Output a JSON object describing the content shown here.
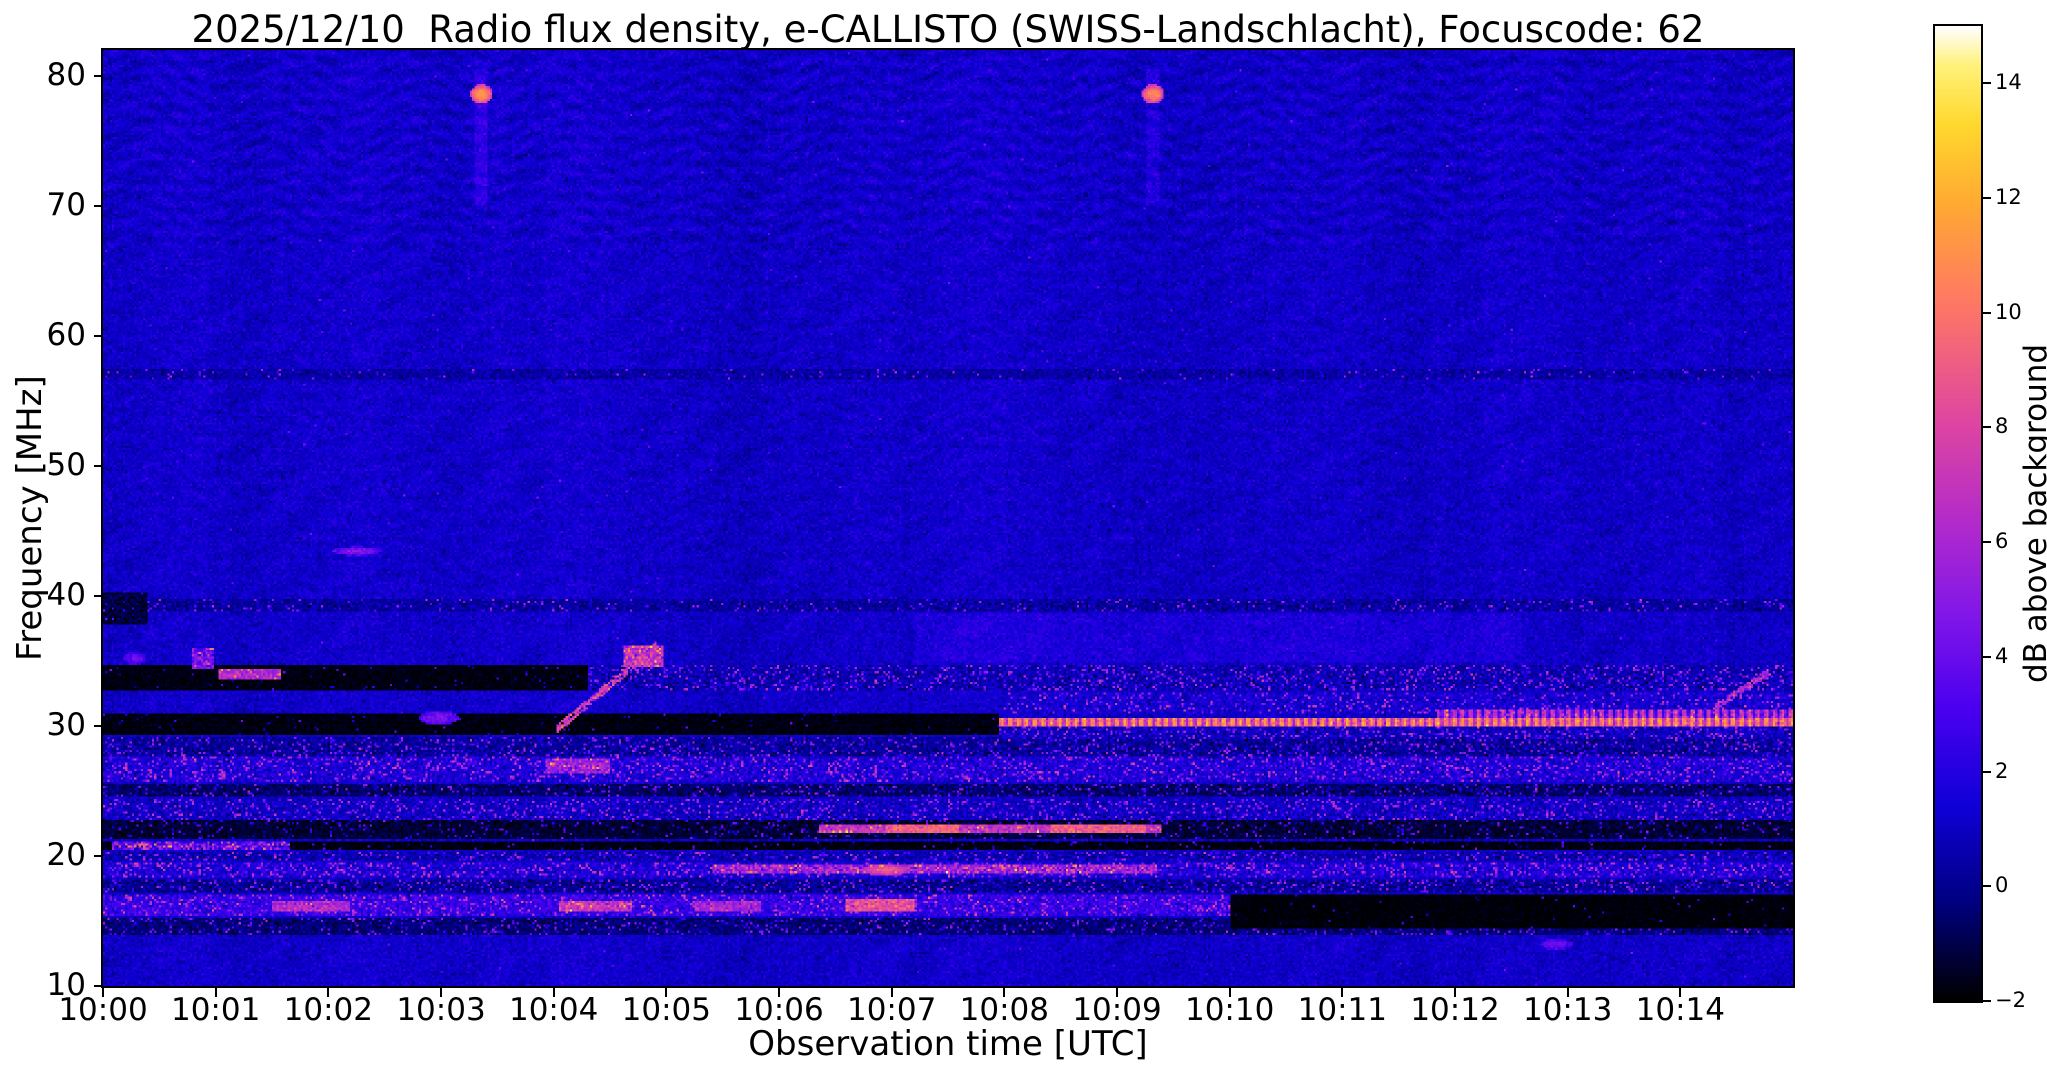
{
  "chart_data": {
    "type": "heatmap",
    "title": "2025/12/10  Radio flux density, e-CALLISTO (SWISS-Landschlacht), Focuscode: 62",
    "xlabel": "Observation time [UTC]",
    "ylabel": "Frequency [MHz]",
    "x_range_minutes": [
      0,
      15
    ],
    "y_range_mhz": [
      10,
      82
    ],
    "x_ticks": [
      {
        "minute": 0,
        "label": "10:00"
      },
      {
        "minute": 1,
        "label": "10:01"
      },
      {
        "minute": 2,
        "label": "10:02"
      },
      {
        "minute": 3,
        "label": "10:03"
      },
      {
        "minute": 4,
        "label": "10:04"
      },
      {
        "minute": 5,
        "label": "10:05"
      },
      {
        "minute": 6,
        "label": "10:06"
      },
      {
        "minute": 7,
        "label": "10:07"
      },
      {
        "minute": 8,
        "label": "10:08"
      },
      {
        "minute": 9,
        "label": "10:09"
      },
      {
        "minute": 10,
        "label": "10:10"
      },
      {
        "minute": 11,
        "label": "10:11"
      },
      {
        "minute": 12,
        "label": "10:12"
      },
      {
        "minute": 13,
        "label": "10:13"
      },
      {
        "minute": 14,
        "label": "10:14"
      }
    ],
    "y_ticks": [
      10,
      20,
      30,
      40,
      50,
      60,
      70,
      80
    ],
    "colorbar": {
      "label": "dB above background",
      "range": [
        -2,
        15
      ],
      "ticks": [
        {
          "value": -2,
          "label": "−2"
        },
        {
          "value": 0,
          "label": "0"
        },
        {
          "value": 2,
          "label": "2"
        },
        {
          "value": 4,
          "label": "4"
        },
        {
          "value": 6,
          "label": "6"
        },
        {
          "value": 8,
          "label": "8"
        },
        {
          "value": 10,
          "label": "10"
        },
        {
          "value": 12,
          "label": "12"
        },
        {
          "value": 14,
          "label": "14"
        }
      ]
    },
    "colormap_stops": [
      [
        0.0,
        "#000000"
      ],
      [
        0.1,
        "#000080"
      ],
      [
        0.2,
        "#1000d8"
      ],
      [
        0.3,
        "#4b00f0"
      ],
      [
        0.4,
        "#8418e8"
      ],
      [
        0.5,
        "#b82dc8"
      ],
      [
        0.6,
        "#e1489f"
      ],
      [
        0.72,
        "#ff7a63"
      ],
      [
        0.82,
        "#ffab32"
      ],
      [
        0.9,
        "#ffd92e"
      ],
      [
        0.96,
        "#fff27a"
      ],
      [
        1.0,
        "#ffffff"
      ]
    ],
    "background_level_db": 1.1,
    "noise_sigma_db": 0.45,
    "features": [
      {
        "kind": "ripple",
        "t0": 0,
        "t1": 15,
        "f0": 67,
        "f1": 82,
        "amp": 0.5
      },
      {
        "kind": "ripple",
        "t0": 0,
        "t1": 15,
        "f0": 40,
        "f1": 67,
        "amp": 0.2
      },
      {
        "kind": "band",
        "t0": 0,
        "t1": 15,
        "f0": 56.7,
        "f1": 57.5,
        "level": 0.4,
        "speckle": 0.15,
        "jitter": 0.5
      },
      {
        "kind": "band",
        "t0": 0,
        "t1": 15,
        "f0": 38.8,
        "f1": 39.7,
        "level": 0.3,
        "speckle": 0.25,
        "jitter": 0.6
      },
      {
        "kind": "band",
        "t0": 0,
        "t1": 0.4,
        "f0": 37.8,
        "f1": 40.2,
        "level": -1.2,
        "speckle": 0.1,
        "jitter": 0.5
      },
      {
        "kind": "add",
        "t0": 7.2,
        "t1": 12.6,
        "f0": 34.8,
        "f1": 38.6,
        "level": 0.7
      },
      {
        "kind": "band",
        "t0": 8,
        "t1": 15,
        "f0": 31.0,
        "f1": 32.6,
        "level": 1.4,
        "speckle": 0.45,
        "jitter": 0.6
      },
      {
        "kind": "band",
        "t0": 0,
        "t1": 15,
        "f0": 32.8,
        "f1": 34.7,
        "level": 0.7,
        "speckle": 0.55,
        "jitter": 0.7
      },
      {
        "kind": "band",
        "t0": 0,
        "t1": 4.3,
        "f0": 32.8,
        "f1": 34.7,
        "level": -1.8,
        "speckle": 0.06,
        "jitter": 0.25
      },
      {
        "kind": "band",
        "t0": 1.02,
        "t1": 1.58,
        "f0": 33.5,
        "f1": 34.4,
        "level": 6.2,
        "speckle": 0.2,
        "jitter": 0.8
      },
      {
        "kind": "band",
        "t0": 0.78,
        "t1": 0.98,
        "f0": 34.4,
        "f1": 36.0,
        "level": 4.2,
        "speckle": 0.3,
        "jitter": 1.0
      },
      {
        "kind": "band",
        "t0": 0,
        "t1": 7.95,
        "f0": 29.3,
        "f1": 30.9,
        "level": -1.8,
        "speckle": 0.05,
        "jitter": 0.25
      },
      {
        "kind": "dot",
        "t": 2.98,
        "f": 30.6,
        "w": 0.18,
        "h": 0.55,
        "level": 4.6
      },
      {
        "kind": "band",
        "t0": 0,
        "t1": 15,
        "f0": 27.7,
        "f1": 29.2,
        "level": 0.2,
        "speckle": 0.5,
        "jitter": 0.6
      },
      {
        "kind": "band",
        "t0": 0,
        "t1": 15,
        "f0": 25.7,
        "f1": 27.6,
        "level": 1.6,
        "speckle": 0.55,
        "jitter": 0.7
      },
      {
        "kind": "band",
        "t0": 3.92,
        "t1": 4.5,
        "f0": 26.4,
        "f1": 27.5,
        "level": 5.6,
        "speckle": 0.3,
        "jitter": 1.0
      },
      {
        "kind": "band",
        "t0": 0,
        "t1": 15,
        "f0": 24.5,
        "f1": 25.5,
        "level": -0.6,
        "speckle": 0.4,
        "jitter": 0.5
      },
      {
        "kind": "band",
        "t0": 0,
        "t1": 15,
        "f0": 22.8,
        "f1": 24.4,
        "level": 1.0,
        "speckle": 0.5,
        "jitter": 0.6
      },
      {
        "kind": "band",
        "t0": 0,
        "t1": 15,
        "f0": 21.3,
        "f1": 22.7,
        "level": -1.3,
        "speckle": 0.3,
        "jitter": 0.4
      },
      {
        "kind": "band",
        "t0": 6.35,
        "t1": 9.4,
        "f0": 21.8,
        "f1": 22.45,
        "level": 6.8,
        "speckle": 0.3,
        "jitter": 0.9
      },
      {
        "kind": "band",
        "t0": 6.95,
        "t1": 7.6,
        "f0": 21.8,
        "f1": 22.45,
        "level": 9.3,
        "jitter": 0.8
      },
      {
        "kind": "band",
        "t0": 8.4,
        "t1": 9.25,
        "f0": 21.8,
        "f1": 22.45,
        "level": 9.0,
        "jitter": 0.8
      },
      {
        "kind": "band",
        "t0": 0,
        "t1": 15,
        "f0": 20.4,
        "f1": 21.2,
        "level": -1.8,
        "speckle": 0.12,
        "jitter": 0.3
      },
      {
        "kind": "band",
        "t0": 0.08,
        "t1": 1.65,
        "f0": 20.4,
        "f1": 21.2,
        "level": 3.5,
        "speckle": 0.8,
        "jitter": 1.6
      },
      {
        "kind": "band",
        "t0": 0,
        "t1": 15,
        "f0": 19.6,
        "f1": 20.3,
        "level": 0.6,
        "speckle": 0.45,
        "jitter": 0.6
      },
      {
        "kind": "band",
        "t0": 0,
        "t1": 15,
        "f0": 18.3,
        "f1": 19.5,
        "level": 1.6,
        "speckle": 0.6,
        "jitter": 0.7
      },
      {
        "kind": "band",
        "t0": 5.4,
        "t1": 9.35,
        "f0": 18.6,
        "f1": 19.3,
        "level": 5.5,
        "speckle": 0.45,
        "jitter": 1.2
      },
      {
        "kind": "dot",
        "t": 6.95,
        "f": 18.95,
        "w": 0.22,
        "h": 0.45,
        "level": 9.2
      },
      {
        "kind": "band",
        "t0": 0,
        "t1": 15,
        "f0": 17.2,
        "f1": 18.2,
        "level": 0.1,
        "speckle": 0.5,
        "jitter": 0.6
      },
      {
        "kind": "band",
        "t0": 0,
        "t1": 15,
        "f0": 13.9,
        "f1": 15.3,
        "level": -0.4,
        "speckle": 0.4,
        "jitter": 0.5
      },
      {
        "kind": "band",
        "t0": 0,
        "t1": 10.0,
        "f0": 15.4,
        "f1": 17.0,
        "level": 2.4,
        "speckle": 0.45,
        "jitter": 0.8
      },
      {
        "kind": "band",
        "t0": 1.5,
        "t1": 2.2,
        "f0": 15.7,
        "f1": 16.6,
        "level": 6.2,
        "speckle": 0.3,
        "jitter": 1.0
      },
      {
        "kind": "band",
        "t0": 4.05,
        "t1": 4.7,
        "f0": 15.7,
        "f1": 16.6,
        "level": 7.0,
        "speckle": 0.3,
        "jitter": 1.2
      },
      {
        "kind": "band",
        "t0": 5.25,
        "t1": 5.85,
        "f0": 15.7,
        "f1": 16.5,
        "level": 5.8,
        "jitter": 1.0
      },
      {
        "kind": "band",
        "t0": 6.6,
        "t1": 7.2,
        "f0": 15.8,
        "f1": 16.7,
        "level": 8.4,
        "jitter": 1.0
      },
      {
        "kind": "band",
        "t0": 10.0,
        "t1": 15,
        "f0": 14.4,
        "f1": 17.0,
        "level": -1.9,
        "speckle": 0.04,
        "jitter": 0.2
      },
      {
        "kind": "band",
        "t0": 7.95,
        "t1": 15,
        "f0": 29.0,
        "f1": 29.9,
        "level": 0.9,
        "speckle": 0.5,
        "jitter": 0.6
      },
      {
        "kind": "band",
        "t0": 7.95,
        "t1": 15,
        "f0": 29.9,
        "f1": 30.6,
        "level": 9.3,
        "dash": true,
        "jitter": 0.8
      },
      {
        "kind": "band",
        "t0": 11.85,
        "t1": 15,
        "f0": 30.6,
        "f1": 31.3,
        "level": 5.6,
        "dash": true,
        "speckle": 0.2,
        "jitter": 0.8
      },
      {
        "kind": "drift",
        "t0": 4.02,
        "t1": 4.92,
        "f0": 29.7,
        "f1": 36.2,
        "wd": 0.35,
        "level": 7.5
      },
      {
        "kind": "band",
        "t0": 4.62,
        "t1": 4.98,
        "f0": 34.6,
        "f1": 36.2,
        "level": 7.0,
        "speckle": 0.3,
        "jitter": 1.4
      },
      {
        "kind": "drift",
        "t0": 14.3,
        "t1": 14.8,
        "f0": 31.4,
        "f1": 34.2,
        "wd": 0.3,
        "level": 6.2
      },
      {
        "kind": "add",
        "t0": 3.3,
        "t1": 3.42,
        "f0": 70,
        "f1": 80.5,
        "level": 1.4
      },
      {
        "kind": "add",
        "t0": 9.25,
        "t1": 9.38,
        "f0": 70,
        "f1": 80.5,
        "level": 1.0
      },
      {
        "kind": "dot",
        "t": 3.36,
        "f": 78.6,
        "w": 0.1,
        "h": 0.75,
        "level": 11.5
      },
      {
        "kind": "dot",
        "t": 9.32,
        "f": 78.6,
        "w": 0.1,
        "h": 0.75,
        "level": 11.0
      },
      {
        "kind": "dot",
        "t": 2.25,
        "f": 43.45,
        "w": 0.22,
        "h": 0.35,
        "level": 4.8
      },
      {
        "kind": "dot",
        "t": 12.9,
        "f": 13.2,
        "w": 0.15,
        "h": 0.4,
        "level": 4.2
      },
      {
        "kind": "dot",
        "t": 0.28,
        "f": 35.2,
        "w": 0.1,
        "h": 0.5,
        "level": 4.0
      }
    ]
  }
}
